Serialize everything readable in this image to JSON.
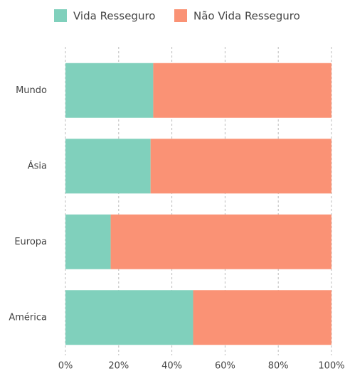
{
  "chart_data": {
    "type": "bar",
    "orientation": "horizontal",
    "stacked": true,
    "categories": [
      "Mundo",
      "Ásia",
      "Europa",
      "América"
    ],
    "series": [
      {
        "name": "Vida Resseguro",
        "color": "#80d0bc",
        "values": [
          33,
          32,
          17,
          48
        ]
      },
      {
        "name": "Não Vida Resseguro",
        "color": "#fa9275",
        "values": [
          67,
          68,
          83,
          52
        ]
      }
    ],
    "xlim": [
      0,
      100
    ],
    "xticks": [
      {
        "value": 0,
        "label": "0%"
      },
      {
        "value": 20,
        "label": "20%"
      },
      {
        "value": 40,
        "label": "40%"
      },
      {
        "value": 60,
        "label": "60%"
      },
      {
        "value": 80,
        "label": "80%"
      },
      {
        "value": 100,
        "label": "100%"
      }
    ],
    "grid": true,
    "legend": "top"
  }
}
